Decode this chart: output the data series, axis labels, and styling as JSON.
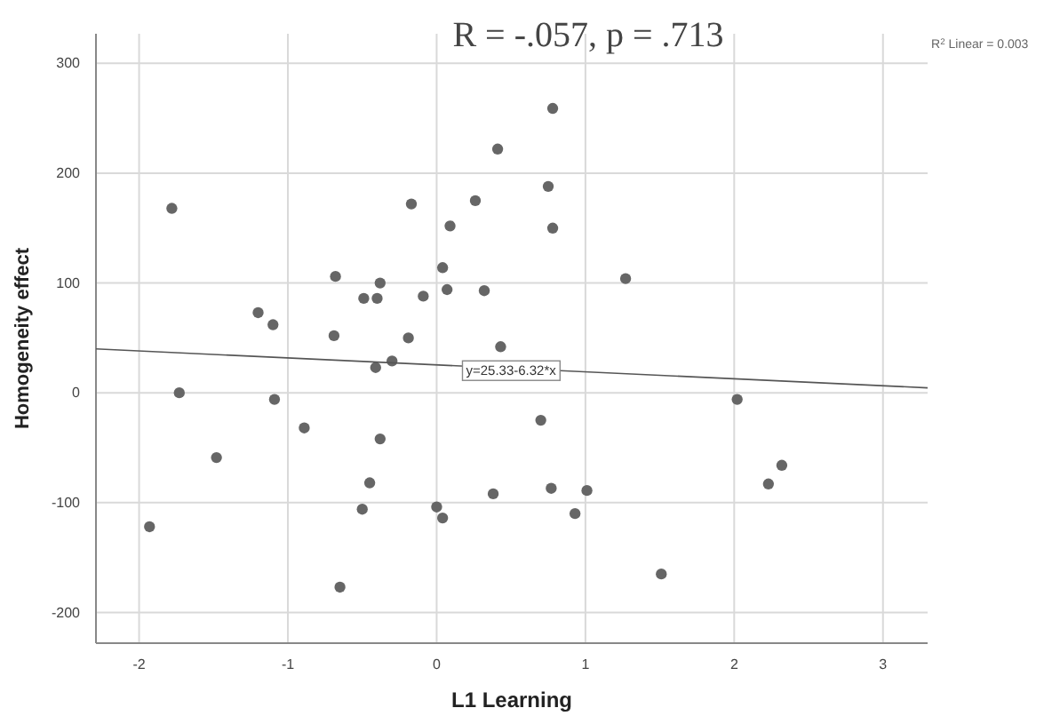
{
  "chart_data": {
    "type": "scatter",
    "title": "R = -.057, p = .713",
    "xlabel": "L1 Learning",
    "ylabel": "Homogeneity effect",
    "xlim": [
      -2.29,
      3.3
    ],
    "ylim": [
      -228,
      327
    ],
    "xticks": [
      -2,
      -1,
      0,
      1,
      2,
      3
    ],
    "yticks": [
      -200,
      -100,
      0,
      100,
      200,
      300
    ],
    "grid": true,
    "marker": "circle",
    "annotations": [
      "R$^{2}$ Linear = 0.003",
      {
        "text": "y=25.33-6.32*x",
        "x": 0.5,
        "y": 21
      }
    ],
    "series": [
      {
        "color": "#666666",
        "x": [
          -1.78,
          0.41,
          -0.17,
          0.26,
          0.09,
          -1.2,
          -1.1,
          -0.68,
          -0.49,
          -0.4,
          -0.38,
          -0.09,
          0.04,
          0.07,
          0.32,
          -0.69,
          -0.19,
          0.43,
          0.78,
          0.75,
          0.78,
          1.27,
          -0.41,
          -0.3,
          -1.73,
          -1.09,
          -0.89,
          -0.38,
          -1.48,
          -0.45,
          -0.5,
          0.0,
          0.04,
          0.38,
          -1.93,
          -0.65,
          0.7,
          0.77,
          1.01,
          0.93,
          1.51,
          2.02,
          2.23,
          2.32
        ],
        "values": [
          168,
          222,
          172,
          175,
          152,
          73,
          62,
          106,
          86,
          86,
          100,
          88,
          114,
          94,
          93,
          52,
          50,
          42,
          259,
          188,
          150,
          104,
          23,
          29,
          0,
          -6,
          -32,
          -42,
          -59,
          -82,
          -106,
          -104,
          -114,
          -92,
          -122,
          -177,
          -25,
          -87,
          -89,
          -110,
          -165,
          -6,
          -83,
          -66
        ]
      },
      {
        "type": "line",
        "color": "#555555",
        "marker": "none",
        "x": [
          -2.29,
          3.3
        ],
        "values": [
          40,
          4.5
        ]
      }
    ]
  }
}
